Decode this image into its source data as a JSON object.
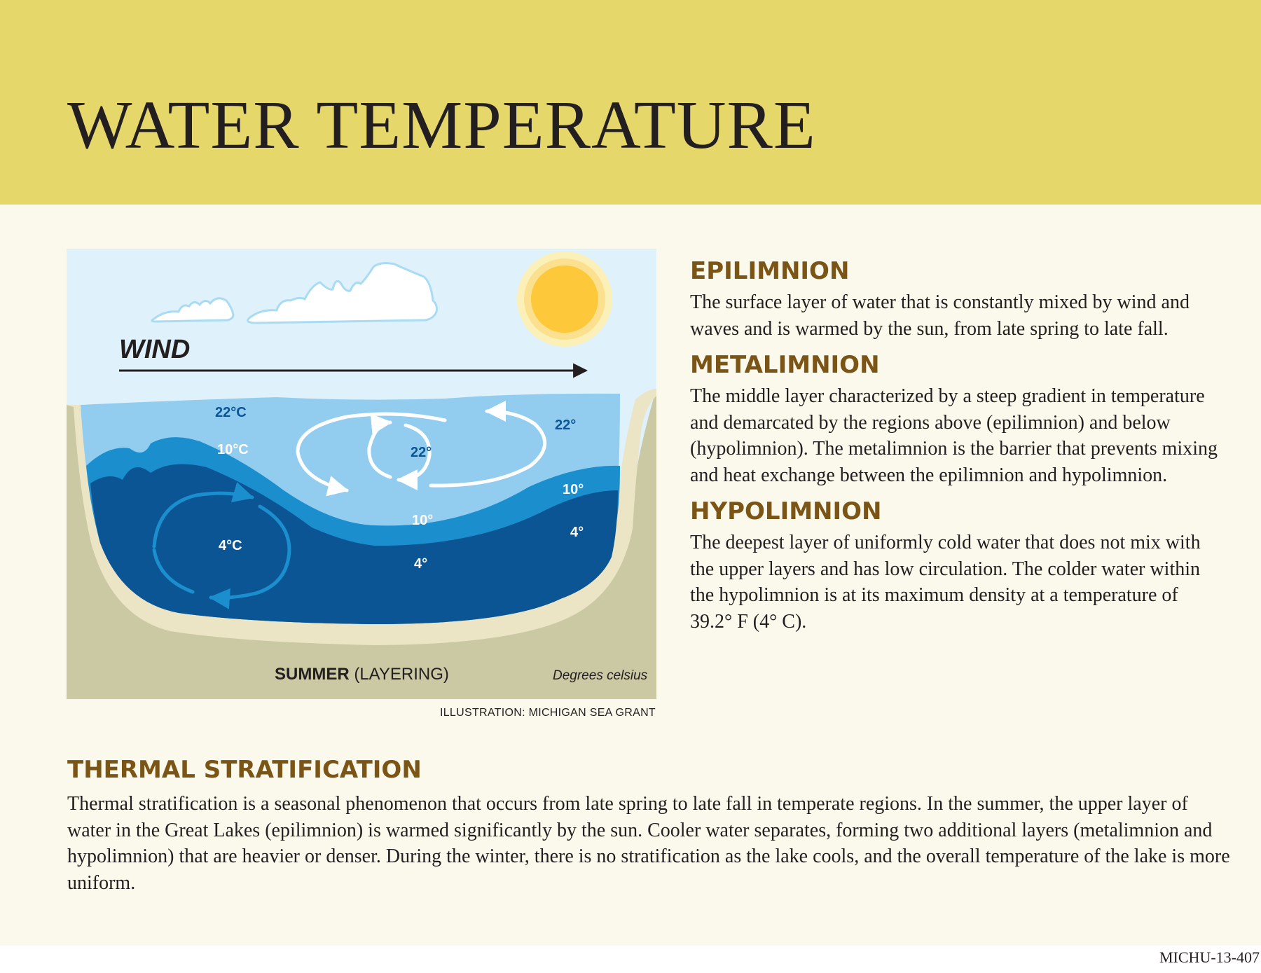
{
  "title": "WATER TEMPERATURE",
  "figure": {
    "wind_label": "WIND",
    "caption_bold": "SUMMER",
    "caption_rest": "(LAYERING)",
    "units_note": "Degrees celsius",
    "labels": {
      "left_epi": "22°C",
      "left_meta": "10°C",
      "left_hypo": "4°C",
      "center_epi": "22°",
      "center_meta": "10°",
      "center_hypo": "4°",
      "right_epi": "22°",
      "right_meta": "10°",
      "right_hypo": "4°"
    },
    "colors": {
      "sky": "#dff1fb",
      "sun": "#fdc93a",
      "epilimnion": "#92cdf0",
      "metalimnion": "#1b8fce",
      "hypolimnion": "#0b5594",
      "shore": "#ebe4c5",
      "ground": "#cbc8a4"
    },
    "credit": "ILLUSTRATION: MICHIGAN SEA GRANT"
  },
  "definitions": [
    {
      "heading": "EPILIMNION",
      "text": "The surface layer of water that is constantly mixed by wind and waves and is warmed by the sun, from late spring to late fall."
    },
    {
      "heading": "METALIMNION",
      "text": "The middle layer characterized by a steep gradient in temperature and demarcated by the regions above (epilimnion) and below (hypolimnion). The metalimnion is the barrier that prevents mixing and heat exchange between the epilimnion and hypolimnion."
    },
    {
      "heading": "HYPOLIMNION",
      "text": "The deepest layer of uniformly cold water that does not mix with the upper layers and has low circulation. The colder water within the hypolimnion is at its maximum density at a temperature of 39.2° F (4° C)."
    }
  ],
  "thermal": {
    "heading": "THERMAL STRATIFICATION",
    "text": "Thermal stratification is a seasonal phenomenon that occurs from late spring to late fall in temperate regions. In the summer, the upper layer of water in the Great Lakes (epilimnion) is warmed significantly by the sun. Cooler water separates, forming two additional layers (metalimnion and hypolimnion) that are heavier or denser. During the winter, there is no stratification as the lake cools, and the overall temperature of the lake is more uniform."
  },
  "footer_code": "MICHU-13-407"
}
